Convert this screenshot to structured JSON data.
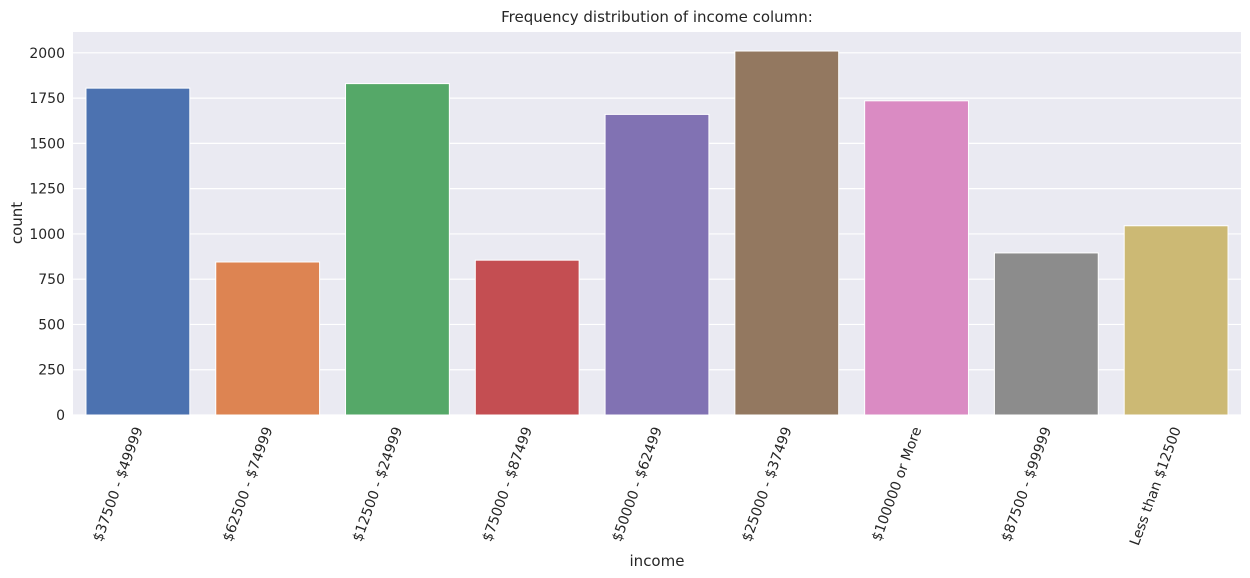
{
  "chart_data": {
    "type": "bar",
    "title": "Frequency distribution of income column:",
    "xlabel": "income",
    "ylabel": "count",
    "categories": [
      "$37500 - $49999",
      "$62500 - $74999",
      "$12500 - $24999",
      "$75000 - $87499",
      "$50000 - $62499",
      "$25000 - $37499",
      "$100000 or More",
      "$87500 - $99999",
      "Less than $12500"
    ],
    "values": [
      1805,
      845,
      1830,
      855,
      1660,
      2010,
      1735,
      895,
      1045
    ],
    "colors": [
      "#4c72b0",
      "#dd8452",
      "#55a868",
      "#c44e52",
      "#8172b3",
      "#937860",
      "#da8bc3",
      "#8c8c8c",
      "#ccb974"
    ],
    "ylim": [
      0,
      2115
    ],
    "yticks": [
      0,
      250,
      500,
      750,
      1000,
      1250,
      1500,
      1750,
      2000
    ],
    "grid": true,
    "background": "#eaeaf2"
  }
}
